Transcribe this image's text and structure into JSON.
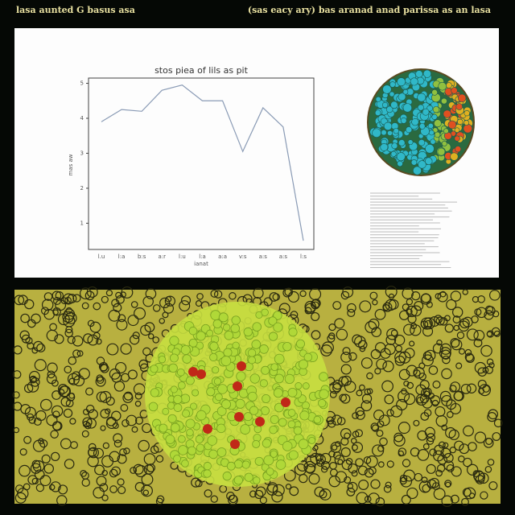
{
  "header": {
    "left": "lasa aunted G basus asa",
    "right": "(sas eacy ary) bas aranad anad parissa as an lasa"
  },
  "chart_data": {
    "type": "line",
    "title": "stos piea of lils as pit",
    "x_label": "ianat",
    "y_label": "mas aw",
    "categories": [
      "l.u",
      "l:a",
      "b:s",
      "a:r",
      "l:u",
      "l:a",
      "a:a",
      "v:s",
      "a:s",
      "a:s",
      "l:s"
    ],
    "series": [
      {
        "name": "line",
        "color": "#8a9bb5",
        "values": [
          3.9,
          4.25,
          4.2,
          4.8,
          4.95,
          4.5,
          4.5,
          3.05,
          4.3,
          3.75,
          0.5
        ]
      }
    ],
    "ylim": [
      0.25,
      5.15
    ],
    "yticks": [
      1,
      2,
      3,
      4,
      5
    ],
    "grid": false
  }
}
